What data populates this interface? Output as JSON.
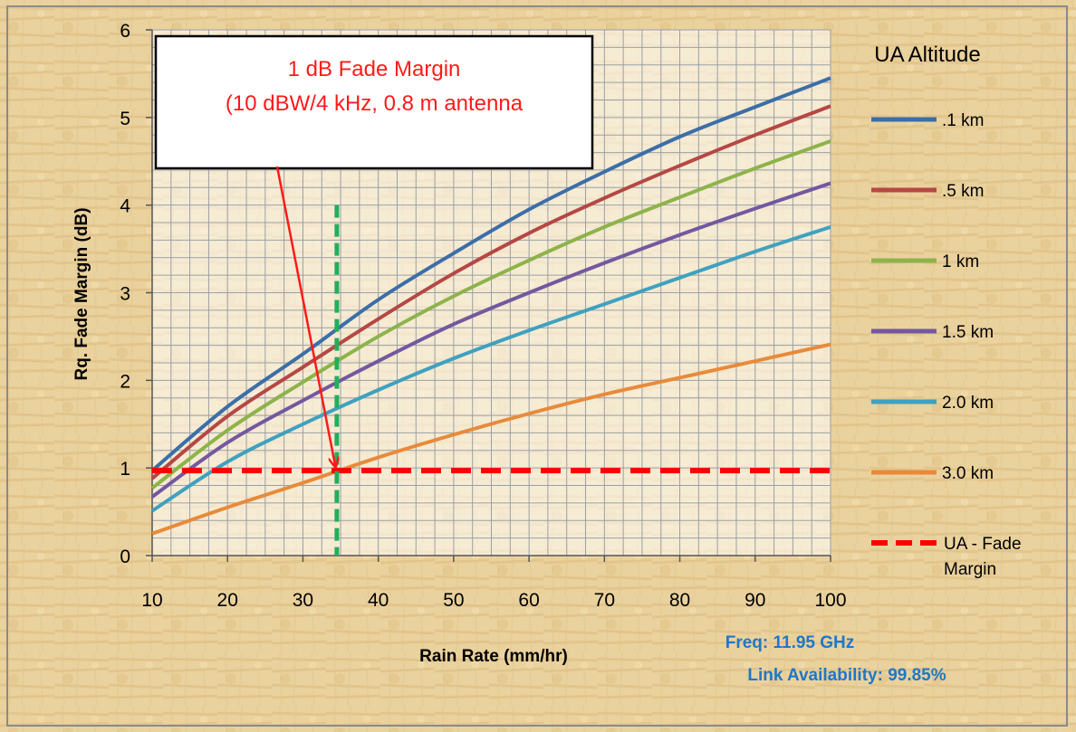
{
  "theme": {
    "border": "#8a8a8a",
    "grid": "#9aa0a6",
    "axis": "#555555",
    "annotation_red": "#ff1a1a",
    "info_blue": "#1f77c9",
    "vline_green": "#1fb05a"
  },
  "annotation": {
    "line1": "1 dB Fade Margin",
    "line2": "(10 dBW/4 kHz, 0.8 m antenna"
  },
  "info": {
    "freq": "Freq: 11.95 GHz",
    "availability": "Link Availability:  99.85%"
  },
  "chart_data": {
    "type": "line",
    "title": "",
    "xlabel": "Rain Rate (mm/hr)",
    "ylabel": "Rq. Fade Margin (dB)",
    "xlim": [
      10,
      100
    ],
    "ylim": [
      0,
      6
    ],
    "x_ticks": [
      10,
      20,
      30,
      40,
      50,
      60,
      70,
      80,
      90,
      100
    ],
    "y_ticks": [
      0,
      1,
      2,
      3,
      4,
      5,
      6
    ],
    "grid": true,
    "legend_title": "UA Altitude",
    "legend_position": "right",
    "x": [
      10,
      20,
      30,
      40,
      50,
      60,
      70,
      80,
      90,
      100
    ],
    "series": [
      {
        "name": ".1 km",
        "color": "#3c6ea8",
        "values": [
          0.97,
          1.7,
          2.3,
          2.92,
          3.45,
          3.95,
          4.38,
          4.78,
          5.12,
          5.45
        ]
      },
      {
        "name": ".5 km",
        "color": "#b54744",
        "values": [
          0.88,
          1.59,
          2.15,
          2.7,
          3.22,
          3.68,
          4.08,
          4.45,
          4.8,
          5.13
        ]
      },
      {
        "name": "1 km",
        "color": "#8db34a",
        "values": [
          0.77,
          1.43,
          1.98,
          2.5,
          2.96,
          3.37,
          3.75,
          4.09,
          4.42,
          4.73
        ]
      },
      {
        "name": "1.5 km",
        "color": "#7358a0",
        "values": [
          0.67,
          1.29,
          1.77,
          2.22,
          2.64,
          3.0,
          3.34,
          3.66,
          3.96,
          4.25
        ]
      },
      {
        "name": "2.0 km",
        "color": "#3fa1c0",
        "values": [
          0.51,
          1.07,
          1.5,
          1.89,
          2.25,
          2.57,
          2.87,
          3.17,
          3.47,
          3.75
        ]
      },
      {
        "name": "3.0 km",
        "color": "#e88a3a",
        "values": [
          0.25,
          0.55,
          0.83,
          1.12,
          1.38,
          1.62,
          1.84,
          2.03,
          2.22,
          2.41
        ]
      },
      {
        "name": "UA - Fade Margin",
        "color": "#ff0000",
        "dashed": true,
        "values": [
          0.97,
          0.97,
          0.97,
          0.97,
          0.97,
          0.97,
          0.97,
          0.97,
          0.97,
          0.97
        ]
      }
    ],
    "vertical_marker": {
      "x": 34.5,
      "y_range": [
        0,
        4.0
      ],
      "color": "#1fb05a"
    },
    "arrow": {
      "to_x": 34.3,
      "to_y": 1.0
    }
  }
}
